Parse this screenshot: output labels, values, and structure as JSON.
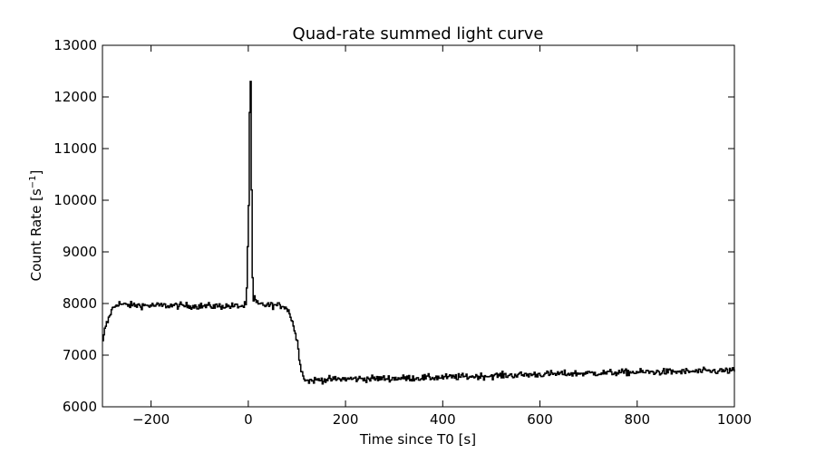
{
  "chart_data": {
    "type": "line",
    "title": "Quad-rate summed light curve",
    "xlabel": "Time since T0 [s]",
    "ylabel_main": "Count Rate [s",
    "ylabel_sup": "−1",
    "ylabel_end": "]",
    "xlim": [
      -300,
      1000
    ],
    "ylim": [
      6000,
      13000
    ],
    "x_ticks": [
      -200,
      0,
      200,
      400,
      600,
      800,
      1000
    ],
    "x_tick_labels": [
      "−200",
      "0",
      "200",
      "400",
      "600",
      "800",
      "1000"
    ],
    "y_ticks": [
      6000,
      7000,
      8000,
      9000,
      10000,
      11000,
      12000,
      13000
    ],
    "y_tick_labels": [
      "6000",
      "7000",
      "8000",
      "9000",
      "10000",
      "11000",
      "12000",
      "13000"
    ],
    "grid": false,
    "line_color": "#000000",
    "series": [
      {
        "values_step_s": 2,
        "x": [
          -300,
          -295,
          -290,
          -285,
          -280,
          -275,
          -270,
          -265,
          -260,
          -250,
          -200,
          -150,
          -100,
          -50,
          -10,
          -5,
          -3,
          -1,
          0,
          1,
          2,
          3,
          4,
          5,
          6,
          7,
          8,
          9,
          10,
          12,
          15,
          20,
          40,
          60,
          75,
          85,
          90,
          95,
          100,
          105,
          110,
          115,
          120,
          140,
          200,
          300,
          400,
          500,
          600,
          700,
          800,
          900,
          1000
        ],
        "y": [
          7250,
          7550,
          7650,
          7800,
          7900,
          7950,
          8000,
          8000,
          7980,
          7970,
          7960,
          7960,
          7950,
          7950,
          7950,
          8000,
          8600,
          9600,
          9900,
          10800,
          11700,
          10500,
          12300,
          11800,
          10200,
          9300,
          8500,
          8150,
          8050,
          8100,
          8020,
          7980,
          7970,
          7960,
          7950,
          7800,
          7650,
          7450,
          7250,
          6900,
          6650,
          6550,
          6500,
          6520,
          6540,
          6550,
          6570,
          6600,
          6630,
          6650,
          6670,
          6680,
          6700
        ]
      }
    ]
  }
}
